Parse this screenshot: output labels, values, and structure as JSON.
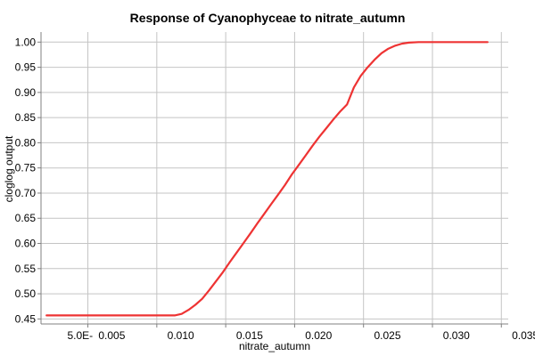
{
  "chart_data": {
    "type": "line",
    "title": "Response of Cyanophyceae to nitrate_autumn",
    "xlabel": "nitrate_autumn",
    "ylabel": "cloglog output",
    "xlim": [
      0.0016,
      0.0355
    ],
    "ylim": [
      0.44,
      1.02
    ],
    "x_ticks": [
      0.005,
      0.01,
      0.015,
      0.02,
      0.025,
      0.03,
      0.035
    ],
    "x_tick_labels": [
      "5.0E-",
      "0.005",
      "0.010",
      "0.015",
      "0.020",
      "0.025",
      "0.030",
      "0.035"
    ],
    "x_tick_label_positions": [
      0.0045,
      0.0068,
      0.0118,
      0.0168,
      0.0218,
      0.0268,
      0.0318,
      0.0368
    ],
    "y_ticks": [
      0.45,
      0.5,
      0.55,
      0.6,
      0.65,
      0.7,
      0.75,
      0.8,
      0.85,
      0.9,
      0.95,
      1.0
    ],
    "y_tick_labels": [
      "0.45",
      "0.50",
      "0.55",
      "0.60",
      "0.65",
      "0.70",
      "0.75",
      "0.80",
      "0.85",
      "0.90",
      "0.95",
      "1.00"
    ],
    "grid": true,
    "line_color": "#ee3333",
    "series": [
      {
        "x": [
          0.002,
          0.004,
          0.006,
          0.008,
          0.01,
          0.0113,
          0.0118,
          0.0123,
          0.0128,
          0.0133,
          0.0138,
          0.0143,
          0.0148,
          0.0153,
          0.0158,
          0.0163,
          0.0168,
          0.0173,
          0.0178,
          0.0183,
          0.0188,
          0.0193,
          0.0198,
          0.0203,
          0.0208,
          0.0213,
          0.0218,
          0.0223,
          0.0228,
          0.0233,
          0.0238,
          0.0243,
          0.0248,
          0.0253,
          0.0258,
          0.0263,
          0.0268,
          0.0273,
          0.0278,
          0.0283,
          0.029,
          0.03,
          0.031,
          0.032,
          0.033,
          0.034
        ],
        "y": [
          0.457,
          0.457,
          0.457,
          0.457,
          0.457,
          0.457,
          0.46,
          0.468,
          0.478,
          0.49,
          0.507,
          0.525,
          0.543,
          0.563,
          0.582,
          0.601,
          0.62,
          0.64,
          0.659,
          0.678,
          0.697,
          0.716,
          0.737,
          0.756,
          0.775,
          0.794,
          0.812,
          0.829,
          0.846,
          0.862,
          0.876,
          0.91,
          0.933,
          0.95,
          0.965,
          0.978,
          0.987,
          0.993,
          0.997,
          0.999,
          1.0,
          1.0,
          1.0,
          1.0,
          1.0,
          1.0
        ]
      }
    ]
  }
}
